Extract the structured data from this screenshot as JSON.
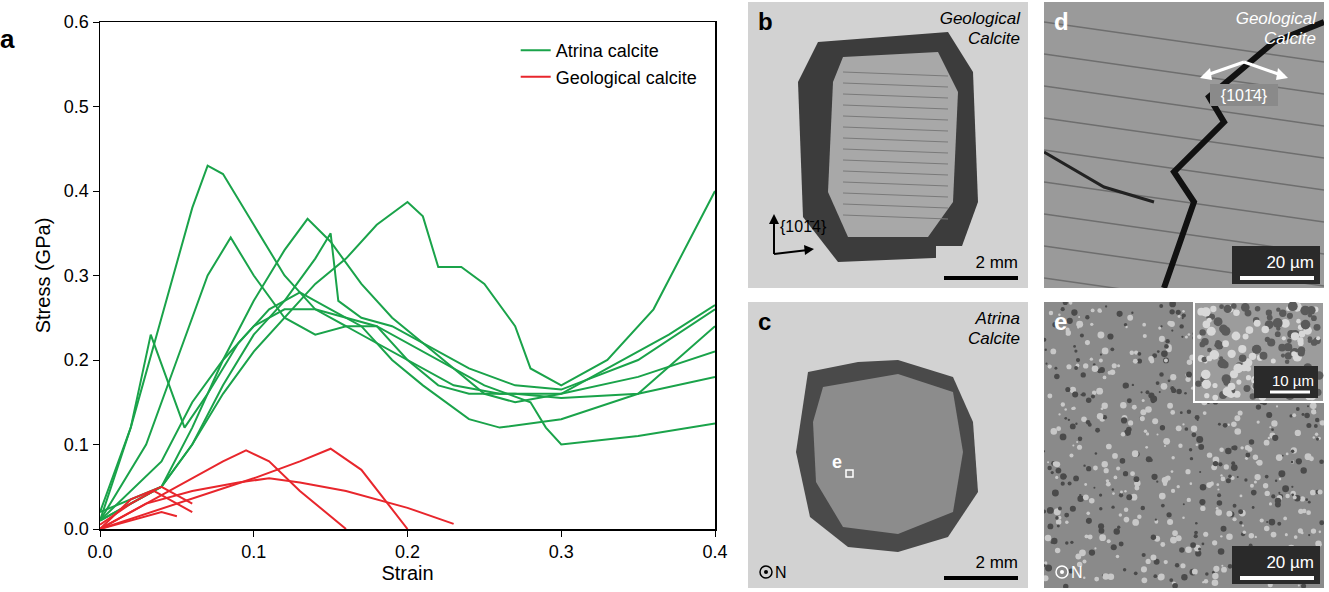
{
  "chart_data": {
    "type": "line",
    "panel_label": "a",
    "x_label": "Strain",
    "y_label": "Stress (GPa)",
    "xlim": [
      0,
      0.4
    ],
    "xticks": [
      {
        "value": 0,
        "label": "0.0"
      },
      0.1,
      0.2,
      0.3,
      0.4
    ],
    "ylim": [
      0,
      0.6
    ],
    "yticks": [
      {
        "value": 0,
        "label": "0.0"
      },
      0.1,
      0.2,
      0.3,
      0.4,
      0.5,
      0.6
    ],
    "grid": false,
    "legend": "top right",
    "series": [
      {
        "name": "Atrina calcite",
        "color": "#1aa34a",
        "x": [
          0,
          0.02,
          0.04,
          0.06,
          0.07,
          0.08,
          0.1,
          0.12,
          0.14,
          0.16,
          0.18,
          0.2,
          0.22,
          0.25,
          0.28,
          0.29,
          0.3,
          0.35,
          0.4
        ],
        "values": [
          0.02,
          0.12,
          0.25,
          0.38,
          0.43,
          0.42,
          0.36,
          0.3,
          0.26,
          0.24,
          0.24,
          0.22,
          0.2,
          0.17,
          0.15,
          0.12,
          0.1,
          0.11,
          0.125
        ]
      },
      {
        "name": "Atrina calcite",
        "color": "#1aa34a",
        "x": [
          0,
          0.03,
          0.05,
          0.07,
          0.085,
          0.1,
          0.12,
          0.14,
          0.16,
          0.18,
          0.2,
          0.23,
          0.26,
          0.3,
          0.35,
          0.4
        ],
        "values": [
          0.01,
          0.1,
          0.2,
          0.3,
          0.345,
          0.3,
          0.25,
          0.23,
          0.24,
          0.22,
          0.2,
          0.17,
          0.16,
          0.16,
          0.18,
          0.21
        ]
      },
      {
        "name": "Atrina calcite",
        "color": "#1aa34a",
        "x": [
          0,
          0.02,
          0.033,
          0.045,
          0.055,
          0.07,
          0.09,
          0.11,
          0.13,
          0.15,
          0.17,
          0.19,
          0.21,
          0.24,
          0.26,
          0.3,
          0.35,
          0.4
        ],
        "values": [
          0.01,
          0.12,
          0.23,
          0.17,
          0.12,
          0.16,
          0.22,
          0.26,
          0.28,
          0.26,
          0.24,
          0.2,
          0.17,
          0.13,
          0.12,
          0.13,
          0.16,
          0.18
        ]
      },
      {
        "name": "Atrina calcite",
        "color": "#1aa34a",
        "x": [
          0,
          0.04,
          0.06,
          0.08,
          0.1,
          0.12,
          0.135,
          0.15,
          0.17,
          0.19,
          0.21,
          0.23,
          0.25,
          0.27,
          0.3,
          0.33,
          0.37,
          0.4
        ],
        "values": [
          0.01,
          0.05,
          0.12,
          0.2,
          0.27,
          0.33,
          0.367,
          0.34,
          0.29,
          0.25,
          0.22,
          0.19,
          0.16,
          0.15,
          0.16,
          0.19,
          0.23,
          0.265
        ]
      },
      {
        "name": "Atrina calcite",
        "color": "#1aa34a",
        "x": [
          0,
          0.04,
          0.06,
          0.08,
          0.1,
          0.12,
          0.14,
          0.15,
          0.155,
          0.17,
          0.19,
          0.21,
          0.24,
          0.27,
          0.3,
          0.35,
          0.4
        ],
        "values": [
          0.02,
          0.05,
          0.1,
          0.17,
          0.23,
          0.27,
          0.32,
          0.35,
          0.27,
          0.25,
          0.24,
          0.22,
          0.19,
          0.17,
          0.165,
          0.2,
          0.26
        ]
      },
      {
        "name": "Atrina calcite",
        "color": "#1aa34a",
        "x": [
          0,
          0.04,
          0.06,
          0.08,
          0.1,
          0.12,
          0.14,
          0.16,
          0.18,
          0.2,
          0.21,
          0.22,
          0.235,
          0.25,
          0.27,
          0.28,
          0.3,
          0.33,
          0.36,
          0.4
        ],
        "values": [
          0.01,
          0.05,
          0.1,
          0.16,
          0.21,
          0.25,
          0.29,
          0.32,
          0.36,
          0.387,
          0.37,
          0.31,
          0.31,
          0.29,
          0.24,
          0.19,
          0.17,
          0.2,
          0.26,
          0.4
        ]
      },
      {
        "name": "Atrina calcite",
        "color": "#1aa34a",
        "x": [
          0,
          0.04,
          0.06,
          0.08,
          0.1,
          0.12,
          0.14,
          0.16,
          0.18,
          0.2,
          0.22,
          0.24,
          0.27,
          0.3,
          0.35,
          0.4
        ],
        "values": [
          0.01,
          0.08,
          0.15,
          0.2,
          0.24,
          0.26,
          0.26,
          0.25,
          0.24,
          0.2,
          0.17,
          0.16,
          0.16,
          0.155,
          0.16,
          0.24
        ]
      },
      {
        "name": "Geological calcite",
        "color": "#e8262c",
        "x": [
          0,
          0.03,
          0.06,
          0.08,
          0.095,
          0.11,
          0.13,
          0.16
        ],
        "values": [
          0,
          0.03,
          0.06,
          0.08,
          0.093,
          0.08,
          0.045,
          0
        ]
      },
      {
        "name": "Geological calcite",
        "color": "#e8262c",
        "x": [
          0,
          0.05,
          0.1,
          0.13,
          0.15,
          0.17,
          0.2
        ],
        "values": [
          0,
          0.03,
          0.06,
          0.08,
          0.095,
          0.07,
          0
        ]
      },
      {
        "name": "Geological calcite",
        "color": "#e8262c",
        "x": [
          0,
          0.03,
          0.06,
          0.09,
          0.11,
          0.13,
          0.16,
          0.2,
          0.23
        ],
        "values": [
          0,
          0.03,
          0.045,
          0.055,
          0.06,
          0.055,
          0.045,
          0.025,
          0.006
        ]
      },
      {
        "name": "Geological calcite",
        "color": "#e8262c",
        "x": [
          0,
          0.02,
          0.04,
          0.05,
          0.06
        ],
        "values": [
          0,
          0.035,
          0.05,
          0.04,
          0.03
        ]
      },
      {
        "name": "Geological calcite",
        "color": "#e8262c",
        "x": [
          0,
          0.02,
          0.035,
          0.045,
          0.06
        ],
        "values": [
          0.005,
          0.03,
          0.045,
          0.035,
          0.02
        ]
      },
      {
        "name": "Geological calcite",
        "color": "#e8262c",
        "x": [
          0,
          0.02,
          0.04,
          0.05
        ],
        "values": [
          0,
          0.01,
          0.02,
          0.015
        ]
      }
    ]
  },
  "image_panels": [
    {
      "letter": "b",
      "label": "Geological Calcite",
      "crystal_plane": "{101̄4}",
      "scale_bar": "2 mm"
    },
    {
      "letter": "c",
      "label": "Atrina Calcite",
      "marker_label": "e",
      "orientation_label": "N",
      "scale_bar": "2 mm"
    },
    {
      "letter": "d",
      "label": "Geological Calcite",
      "crystal_plane": "{101̄4}",
      "scale_bar": "20 µm"
    },
    {
      "letter": "e",
      "orientation_label": "N",
      "scale_bar": "20 µm",
      "inset_scale_bar": "10 µm"
    }
  ]
}
